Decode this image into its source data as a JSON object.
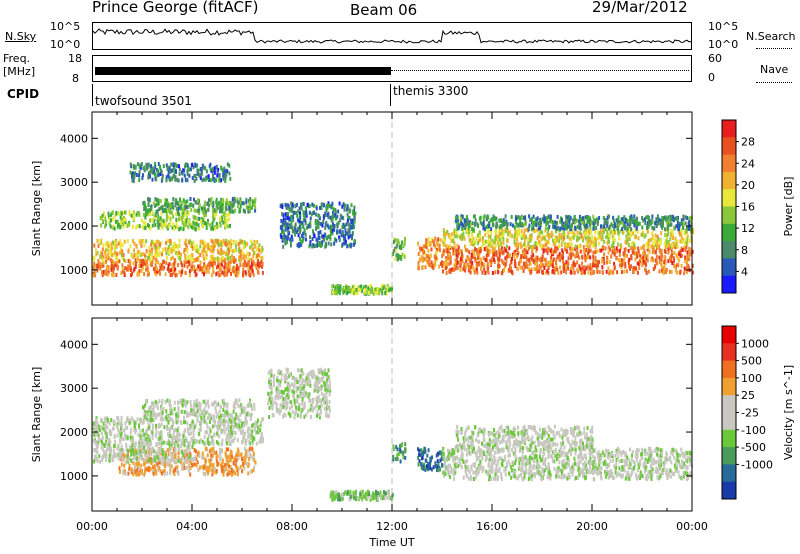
{
  "header": {
    "station": "Prince George (fitACF)",
    "beam": "Beam 06",
    "date": "29/Mar/2012"
  },
  "top_panels": {
    "nsky_label": "N.Sky",
    "nsearch_label": "N.Search",
    "nsky_ticks": [
      "10^5",
      "10^0"
    ],
    "nsearch_ticks": [
      "10^5",
      "10^0"
    ],
    "freq_label_line1": "Freq.",
    "freq_label_line2": "[MHz]",
    "freq_ticks": [
      "18",
      "8"
    ],
    "nave_label": "Nave",
    "nave_ticks": [
      "60",
      "0"
    ],
    "cpid_label": "CPID",
    "cpid_segments": [
      {
        "name": "twofsound 3501",
        "start_hour": 0,
        "end_hour": 12
      },
      {
        "name": "themis 3300",
        "start_hour": 12,
        "end_hour": 24
      }
    ]
  },
  "chart_data": [
    {
      "type": "heatmap",
      "quantity": "power",
      "ylabel": "Slant Range [km]",
      "yticks": [
        1000,
        2000,
        3000,
        4000
      ],
      "ylim": [
        200,
        4600
      ],
      "xlim_hours": [
        0,
        24
      ],
      "colorbar": {
        "label": "Power [dB]",
        "ticks": [
          "4",
          "8",
          "12",
          "16",
          "20",
          "24",
          "28"
        ],
        "range": [
          0,
          32
        ],
        "colors": [
          "#1a1aff",
          "#2a5ab8",
          "#4a8a6a",
          "#3aaa3a",
          "#8ac83a",
          "#e8e83a",
          "#f0b030",
          "#f08030",
          "#e85020",
          "#e81e1e"
        ]
      },
      "scatter_bands": [
        {
          "t0": 0.0,
          "t1": 6.8,
          "r0": 850,
          "r1": 1200,
          "level": 26
        },
        {
          "t0": 0.0,
          "t1": 6.8,
          "r0": 1200,
          "r1": 1650,
          "level": 20
        },
        {
          "t0": 0.3,
          "t1": 5.5,
          "r0": 1900,
          "r1": 2300,
          "level": 14
        },
        {
          "t0": 2.0,
          "t1": 6.5,
          "r0": 2300,
          "r1": 2600,
          "level": 10
        },
        {
          "t0": 1.5,
          "t1": 5.5,
          "r0": 3000,
          "r1": 3400,
          "level": 6
        },
        {
          "t0": 7.5,
          "t1": 10.5,
          "r0": 1500,
          "r1": 2500,
          "level": 6
        },
        {
          "t0": 9.5,
          "t1": 12.0,
          "r0": 430,
          "r1": 620,
          "level": 14
        },
        {
          "t0": 12.0,
          "t1": 12.5,
          "r0": 1200,
          "r1": 1700,
          "level": 12
        },
        {
          "t0": 13.0,
          "t1": 14.0,
          "r0": 1000,
          "r1": 1700,
          "level": 24
        },
        {
          "t0": 14.0,
          "t1": 24.0,
          "r0": 900,
          "r1": 1500,
          "level": 26
        },
        {
          "t0": 14.0,
          "t1": 24.0,
          "r0": 1500,
          "r1": 1900,
          "level": 18
        },
        {
          "t0": 14.5,
          "t1": 24.0,
          "r0": 1900,
          "r1": 2200,
          "level": 8
        }
      ]
    },
    {
      "type": "heatmap",
      "quantity": "velocity",
      "ylabel": "Slant Range [km]",
      "xlabel": "Time UT",
      "yticks": [
        1000,
        2000,
        3000,
        4000
      ],
      "ylim": [
        200,
        4600
      ],
      "xlim_hours": [
        0,
        24
      ],
      "xticks": [
        "00:00",
        "04:00",
        "08:00",
        "12:00",
        "16:00",
        "20:00",
        "00:00"
      ],
      "colorbar": {
        "label": "Velocity [m s^-1]",
        "ticks": [
          "1000",
          "500",
          "100",
          "25",
          "-25",
          "-100",
          "-500",
          "-1000"
        ],
        "colors": [
          "#1a3aaa",
          "#2a6a9a",
          "#4a9a5a",
          "#6ac83a",
          "#c8c8c0",
          "#c8c8c0",
          "#f0a030",
          "#f07020",
          "#e83020",
          "#e80000"
        ]
      },
      "scatter_bands": [
        {
          "t0": 0.0,
          "t1": 6.8,
          "r0": 1700,
          "r1": 2300,
          "level": 4
        },
        {
          "t0": 1.0,
          "t1": 6.5,
          "r0": 1000,
          "r1": 1600,
          "level": 6
        },
        {
          "t0": 0.0,
          "t1": 4.0,
          "r0": 1300,
          "r1": 1700,
          "level": 4
        },
        {
          "t0": 2.0,
          "t1": 6.5,
          "r0": 2300,
          "r1": 2700,
          "level": 4
        },
        {
          "t0": 7.0,
          "t1": 9.5,
          "r0": 2300,
          "r1": 3400,
          "level": 4
        },
        {
          "t0": 9.5,
          "t1": 12.0,
          "r0": 430,
          "r1": 620,
          "level": 3
        },
        {
          "t0": 12.0,
          "t1": 12.5,
          "r0": 1300,
          "r1": 1700,
          "level": 2
        },
        {
          "t0": 13.0,
          "t1": 14.0,
          "r0": 1100,
          "r1": 1600,
          "level": 1
        },
        {
          "t0": 14.0,
          "t1": 24.0,
          "r0": 900,
          "r1": 1600,
          "level": 4
        },
        {
          "t0": 14.5,
          "t1": 20.0,
          "r0": 1600,
          "r1": 2100,
          "level": 4
        }
      ]
    }
  ]
}
